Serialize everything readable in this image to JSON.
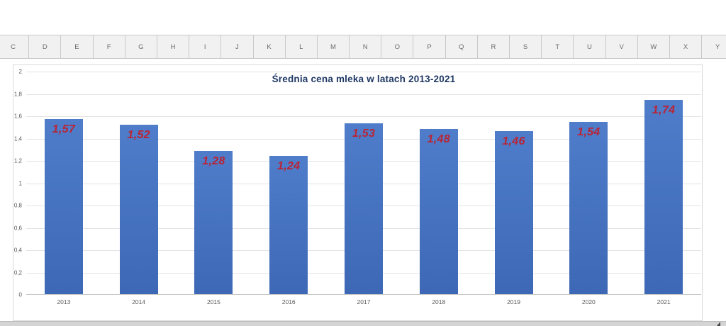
{
  "sheet": {
    "column_headers": [
      "C",
      "D",
      "E",
      "F",
      "G",
      "H",
      "I",
      "J",
      "K",
      "L",
      "M",
      "N",
      "O",
      "P",
      "Q",
      "R",
      "S",
      "T",
      "U",
      "V",
      "W",
      "X",
      "Y"
    ]
  },
  "chart_data": {
    "type": "bar",
    "title": "Średnia cena mleka w latach 2013-2021",
    "categories": [
      "2013",
      "2014",
      "2015",
      "2016",
      "2017",
      "2018",
      "2019",
      "2020",
      "2021"
    ],
    "values": [
      1.57,
      1.52,
      1.28,
      1.24,
      1.53,
      1.48,
      1.46,
      1.54,
      1.74
    ],
    "data_labels": [
      "1,57",
      "1,52",
      "1,28",
      "1,24",
      "1,53",
      "1,48",
      "1,46",
      "1,54",
      "1,74"
    ],
    "y_tick_labels": [
      "2",
      "1,8",
      "1,6",
      "1,4",
      "1,2",
      "1",
      "0,8",
      "0,6",
      "0,4",
      "0,2",
      "0"
    ],
    "ylim": [
      0,
      2
    ],
    "xlabel": "",
    "ylabel": "",
    "grid": true,
    "legend": "none",
    "colors": {
      "bar_top": "#4f7dca",
      "bar_bottom": "#3d68b6",
      "data_label": "#b92436",
      "title": "#1f3864",
      "axis_text": "#595959",
      "gridline": "#e3e3e3"
    }
  }
}
